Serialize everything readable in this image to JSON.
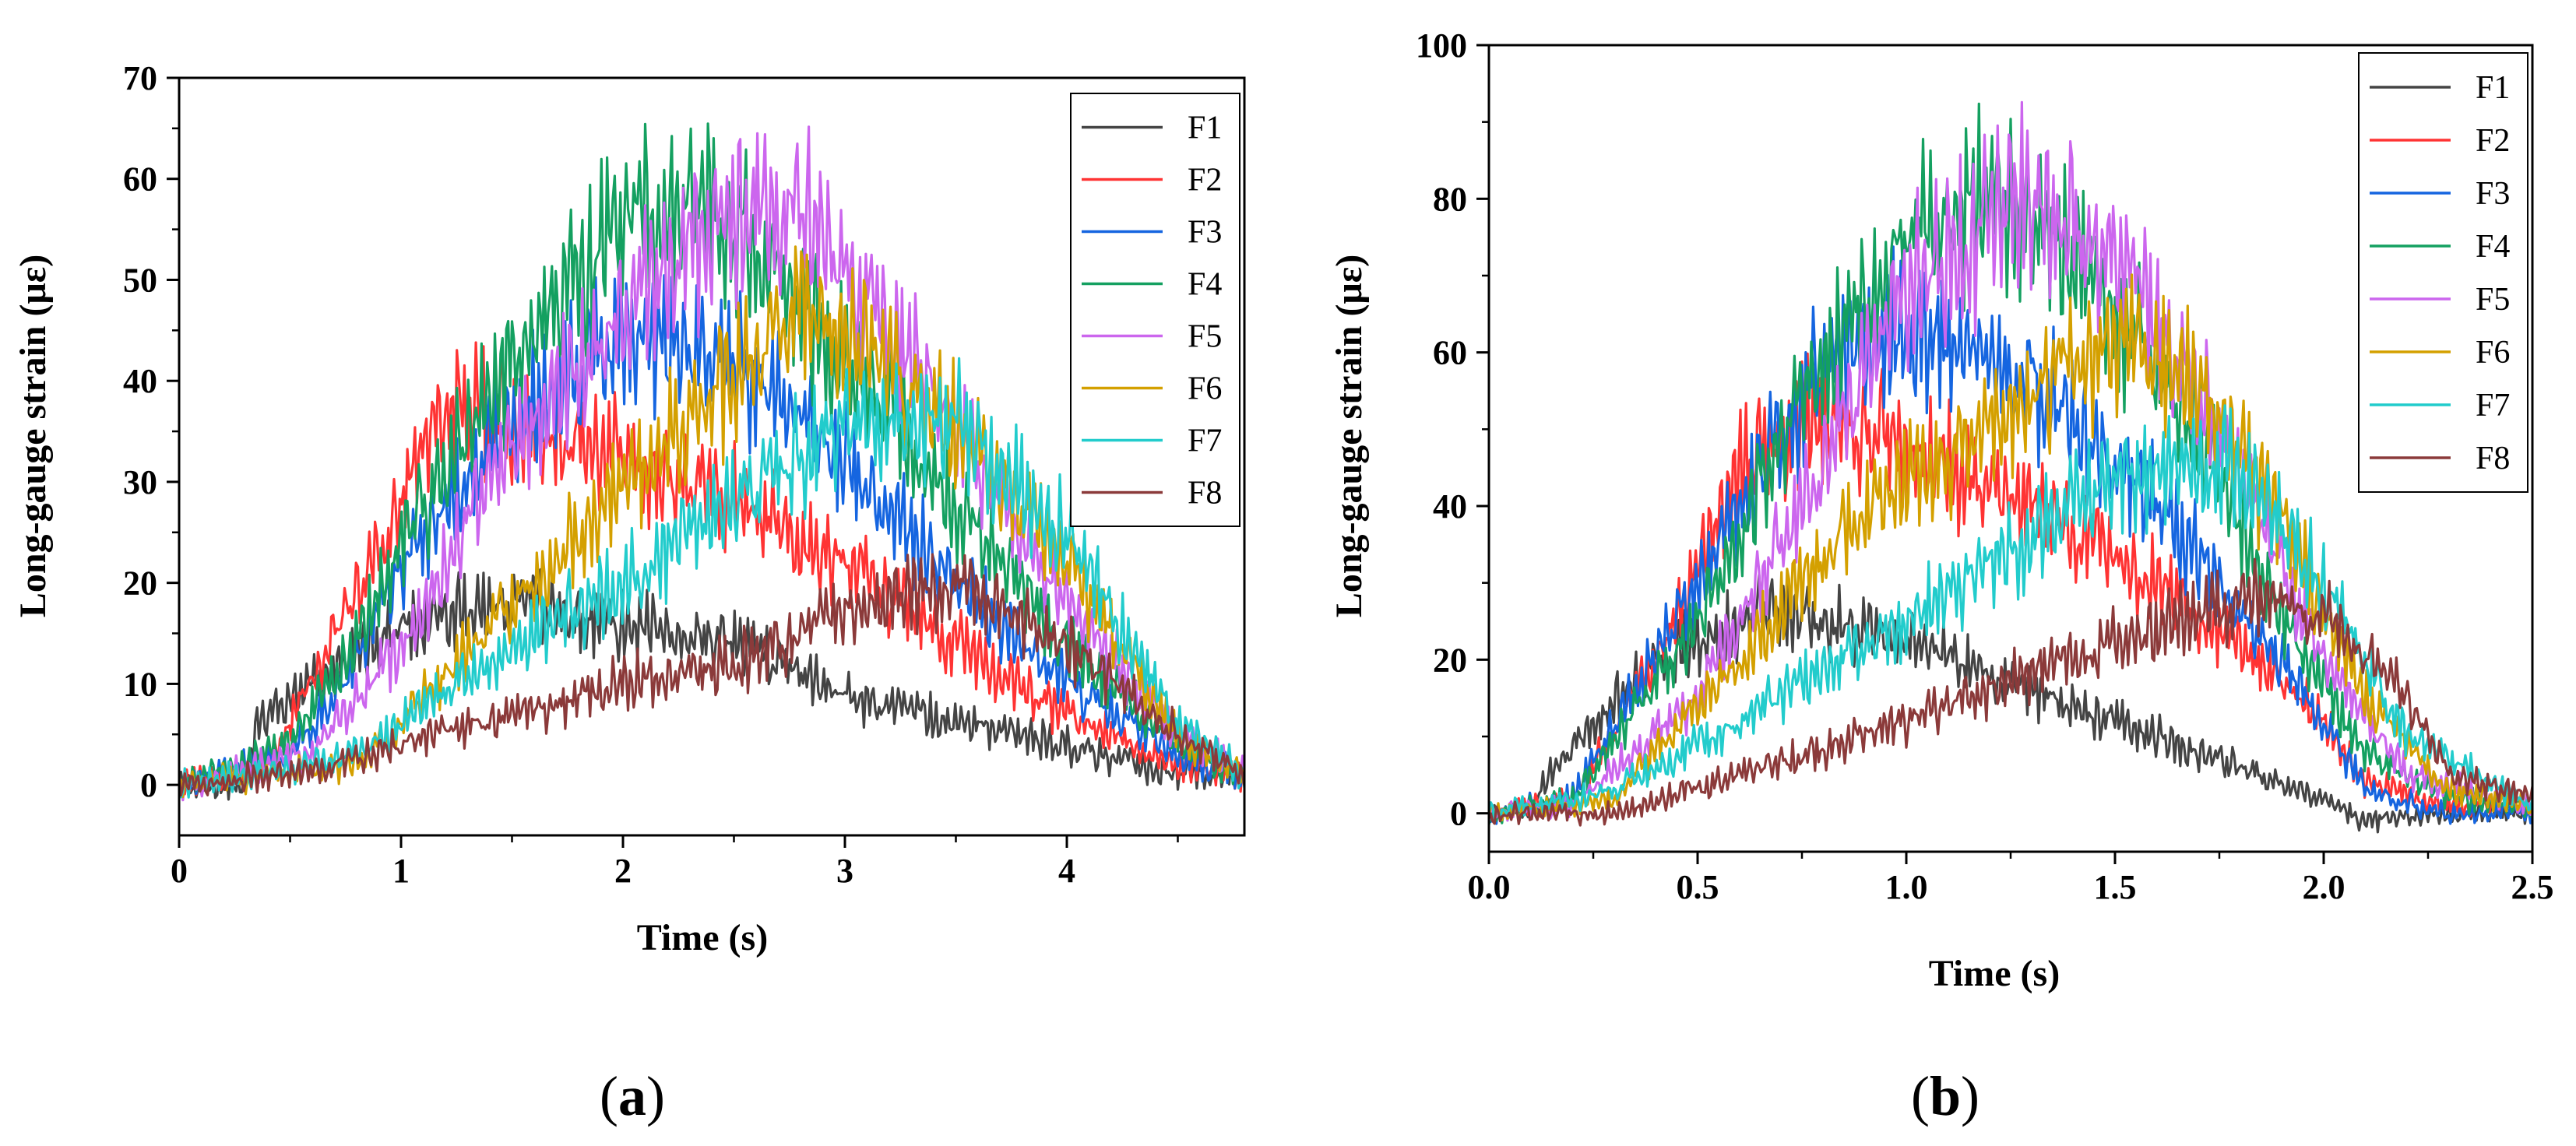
{
  "chart_data": [
    {
      "type": "line",
      "panel_label": "a",
      "xlabel": "Time (s)",
      "ylabel": "Long-gauge strain (με)",
      "xlim": [
        0,
        4.8
      ],
      "ylim": [
        -5,
        70
      ],
      "xticks": [
        0,
        1,
        2,
        3,
        4
      ],
      "xtick_labels": [
        "0",
        "1",
        "2",
        "3",
        "4"
      ],
      "yticks": [
        0,
        10,
        20,
        30,
        40,
        50,
        60,
        70
      ],
      "ytick_labels": [
        "0",
        "10",
        "20",
        "30",
        "40",
        "50",
        "60",
        "70"
      ],
      "legend_position": "top-right",
      "series": [
        {
          "name": "F1",
          "color": "#444444",
          "x": [
            0,
            0.3,
            0.35,
            0.6,
            1.0,
            1.5,
            2.0,
            2.5,
            3.0,
            3.5,
            4.0,
            4.5,
            4.8
          ],
          "values": [
            0,
            0,
            6,
            10,
            16,
            18,
            16,
            14,
            9,
            6,
            4,
            1,
            1
          ]
        },
        {
          "name": "F2",
          "color": "#ff3333",
          "x": [
            0,
            0.4,
            0.7,
            1.0,
            1.2,
            1.5,
            2.0,
            2.5,
            3.0,
            3.5,
            4.0,
            4.5,
            4.8
          ],
          "values": [
            0,
            2,
            15,
            28,
            38,
            36,
            32,
            28,
            22,
            14,
            7,
            2,
            1
          ]
        },
        {
          "name": "F3",
          "color": "#1565e0",
          "x": [
            0,
            0.5,
            0.8,
            1.0,
            1.5,
            2.0,
            2.5,
            3.0,
            3.5,
            4.0,
            4.5,
            4.8
          ],
          "values": [
            0,
            3,
            12,
            22,
            36,
            44,
            42,
            32,
            20,
            10,
            3,
            1
          ]
        },
        {
          "name": "F4",
          "color": "#14a060",
          "x": [
            0,
            0.5,
            0.8,
            1.0,
            1.5,
            2.0,
            2.25,
            2.5,
            3.0,
            3.5,
            4.0,
            4.5,
            4.8
          ],
          "values": [
            0,
            4,
            14,
            24,
            42,
            56,
            58,
            55,
            42,
            28,
            14,
            4,
            1
          ]
        },
        {
          "name": "F5",
          "color": "#cc66ee",
          "x": [
            0,
            0.6,
            1.0,
            1.5,
            2.0,
            2.5,
            2.8,
            3.0,
            3.5,
            4.0,
            4.5,
            4.8
          ],
          "values": [
            0,
            3,
            14,
            34,
            46,
            56,
            56,
            50,
            36,
            18,
            5,
            1
          ]
        },
        {
          "name": "F6",
          "color": "#d4a000",
          "x": [
            0,
            0.8,
            1.0,
            1.5,
            2.0,
            2.5,
            2.8,
            3.0,
            3.5,
            4.0,
            4.5,
            4.8
          ],
          "values": [
            0,
            2,
            6,
            18,
            30,
            40,
            47,
            45,
            35,
            22,
            5,
            1
          ]
        },
        {
          "name": "F7",
          "color": "#22cccc",
          "x": [
            0,
            0.8,
            1.0,
            1.5,
            2.0,
            2.5,
            3.0,
            3.5,
            4.0,
            4.5,
            4.8
          ],
          "values": [
            0,
            3,
            6,
            14,
            20,
            28,
            36,
            36,
            25,
            6,
            1
          ]
        },
        {
          "name": "F8",
          "color": "#8b3a3a",
          "x": [
            0,
            0.5,
            1.0,
            1.5,
            2.0,
            2.5,
            3.0,
            3.5,
            4.0,
            4.5,
            4.8
          ],
          "values": [
            0,
            1,
            4,
            7,
            10,
            12,
            17,
            20,
            14,
            5,
            1
          ]
        }
      ]
    },
    {
      "type": "line",
      "panel_label": "b",
      "xlabel": "Time (s)",
      "ylabel": "Long-gauge strain (με)",
      "xlim": [
        0,
        2.5
      ],
      "ylim": [
        -5,
        100
      ],
      "xticks": [
        0,
        0.5,
        1.0,
        1.5,
        2.0,
        2.5
      ],
      "xtick_labels": [
        "0.0",
        "0.5",
        "1.0",
        "1.5",
        "2.0",
        "2.5"
      ],
      "yticks": [
        0,
        20,
        40,
        60,
        80,
        100
      ],
      "ytick_labels": [
        "0",
        "20",
        "40",
        "60",
        "80",
        "100"
      ],
      "legend_position": "top-right",
      "series": [
        {
          "name": "F1",
          "color": "#444444",
          "x": [
            0,
            0.1,
            0.15,
            0.4,
            0.7,
            1.0,
            1.3,
            1.6,
            1.9,
            2.1,
            2.3,
            2.5
          ],
          "values": [
            0,
            0,
            6,
            20,
            27,
            22,
            16,
            10,
            4,
            -1,
            0,
            0
          ]
        },
        {
          "name": "F2",
          "color": "#ff3333",
          "x": [
            0,
            0.2,
            0.4,
            0.6,
            0.8,
            1.0,
            1.3,
            1.6,
            1.8,
            2.0,
            2.1,
            2.3,
            2.5
          ],
          "values": [
            0,
            2,
            20,
            45,
            52,
            48,
            40,
            30,
            22,
            12,
            4,
            1,
            1
          ]
        },
        {
          "name": "F3",
          "color": "#1565e0",
          "x": [
            0,
            0.2,
            0.5,
            0.8,
            1.0,
            1.3,
            1.6,
            1.9,
            2.0,
            2.1,
            2.3,
            2.5
          ],
          "values": [
            0,
            2,
            30,
            58,
            64,
            56,
            40,
            20,
            12,
            3,
            0,
            0
          ]
        },
        {
          "name": "F4",
          "color": "#14a060",
          "x": [
            0,
            0.2,
            0.5,
            0.8,
            1.0,
            1.2,
            1.4,
            1.7,
            1.9,
            2.1,
            2.3,
            2.5
          ],
          "values": [
            0,
            2,
            25,
            60,
            75,
            80,
            72,
            50,
            25,
            8,
            2,
            1
          ]
        },
        {
          "name": "F5",
          "color": "#cc66ee",
          "x": [
            0,
            0.2,
            0.5,
            0.8,
            1.0,
            1.3,
            1.5,
            1.8,
            2.0,
            2.2,
            2.5
          ],
          "values": [
            0,
            1,
            15,
            45,
            68,
            80,
            72,
            45,
            20,
            5,
            1
          ]
        },
        {
          "name": "F6",
          "color": "#d4a000",
          "x": [
            0,
            0.3,
            0.6,
            0.9,
            1.2,
            1.5,
            1.7,
            1.9,
            2.1,
            2.3,
            2.5
          ],
          "values": [
            0,
            2,
            20,
            40,
            50,
            62,
            55,
            38,
            15,
            3,
            1
          ]
        },
        {
          "name": "F7",
          "color": "#22cccc",
          "x": [
            0,
            0.3,
            0.6,
            0.9,
            1.2,
            1.5,
            1.8,
            2.0,
            2.2,
            2.5
          ],
          "values": [
            0,
            3,
            12,
            22,
            32,
            44,
            45,
            30,
            10,
            1
          ]
        },
        {
          "name": "F8",
          "color": "#8b3a3a",
          "x": [
            0,
            0.3,
            0.6,
            0.9,
            1.2,
            1.5,
            1.8,
            2.0,
            2.2,
            2.3,
            2.5
          ],
          "values": [
            0,
            0,
            5,
            10,
            16,
            22,
            28,
            26,
            15,
            5,
            2
          ]
        }
      ]
    }
  ]
}
